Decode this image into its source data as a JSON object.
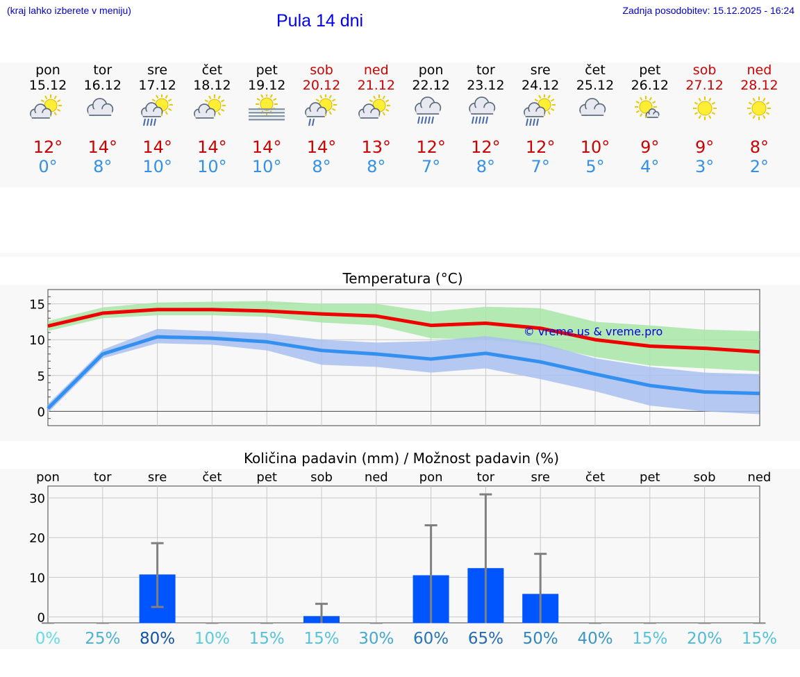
{
  "header": {
    "hint": "(kraj lahko izberete v meniju)",
    "title": "Pula 14 dni",
    "updated": "Zadnja posodobitev: 15.12.2025 - 16:24"
  },
  "days": [
    {
      "name": "pon",
      "date": "15.12",
      "weekend": false,
      "icon": "sun-cloud-icon",
      "max": "12°",
      "min": "0°"
    },
    {
      "name": "tor",
      "date": "16.12",
      "weekend": false,
      "icon": "cloud-icon",
      "max": "14°",
      "min": "8°"
    },
    {
      "name": "sre",
      "date": "17.12",
      "weekend": false,
      "icon": "sun-cloud-rain-icon",
      "max": "14°",
      "min": "10°"
    },
    {
      "name": "čet",
      "date": "18.12",
      "weekend": false,
      "icon": "sun-cloud-icon",
      "max": "14°",
      "min": "10°"
    },
    {
      "name": "pet",
      "date": "19.12",
      "weekend": false,
      "icon": "sun-fog-icon",
      "max": "14°",
      "min": "10°"
    },
    {
      "name": "sob",
      "date": "20.12",
      "weekend": true,
      "icon": "sun-cloud-light-rain-icon",
      "max": "14°",
      "min": "8°"
    },
    {
      "name": "ned",
      "date": "21.12",
      "weekend": true,
      "icon": "sun-cloud-icon",
      "max": "13°",
      "min": "8°"
    },
    {
      "name": "pon",
      "date": "22.12",
      "weekend": false,
      "icon": "cloud-rain-icon",
      "max": "12°",
      "min": "7°"
    },
    {
      "name": "tor",
      "date": "23.12",
      "weekend": false,
      "icon": "cloud-rain-icon",
      "max": "12°",
      "min": "8°"
    },
    {
      "name": "sre",
      "date": "24.12",
      "weekend": false,
      "icon": "sun-cloud-rain-icon",
      "max": "12°",
      "min": "7°"
    },
    {
      "name": "čet",
      "date": "25.12",
      "weekend": false,
      "icon": "cloud-icon",
      "max": "10°",
      "min": "5°"
    },
    {
      "name": "pet",
      "date": "26.12",
      "weekend": false,
      "icon": "sun-small-cloud-icon",
      "max": "9°",
      "min": "4°"
    },
    {
      "name": "sob",
      "date": "27.12",
      "weekend": true,
      "icon": "sun-icon",
      "max": "9°",
      "min": "3°"
    },
    {
      "name": "ned",
      "date": "28.12",
      "weekend": true,
      "icon": "sun-icon",
      "max": "8°",
      "min": "2°"
    }
  ],
  "colors": {
    "max_line": "#ee0000",
    "min_line": "#3390f0",
    "max_band": "#a8e6a8",
    "min_band": "#a8c0f0",
    "precip_bar": "#0055ff",
    "error_bar": "#808080"
  },
  "chart_data": [
    {
      "type": "line",
      "title": "Temperatura (°C)",
      "watermark": "© vreme.us & vreme.pro",
      "ylim": [
        -2,
        17
      ],
      "yticks": [
        "0",
        "5",
        "10",
        "15"
      ],
      "grid": true,
      "series": [
        {
          "name": "max",
          "values": [
            11.9,
            13.7,
            14.2,
            14.2,
            14.0,
            13.6,
            13.3,
            12.0,
            12.3,
            11.6,
            10.0,
            9.1,
            8.8,
            8.3
          ],
          "band_low": [
            11.2,
            13.0,
            13.4,
            13.4,
            13.2,
            12.4,
            12.0,
            10.2,
            10.0,
            9.2,
            7.6,
            6.4,
            6.0,
            5.6
          ],
          "band_high": [
            12.6,
            14.5,
            15.2,
            15.3,
            15.4,
            15.0,
            15.0,
            13.9,
            14.6,
            14.4,
            12.5,
            12.0,
            11.4,
            11.2
          ]
        },
        {
          "name": "min",
          "values": [
            0.4,
            8.0,
            10.4,
            10.2,
            9.7,
            8.5,
            8.0,
            7.3,
            8.1,
            6.9,
            5.2,
            3.6,
            2.7,
            2.5
          ],
          "band_low": [
            -0.2,
            7.4,
            9.5,
            9.3,
            8.5,
            6.5,
            6.2,
            5.4,
            6.0,
            4.5,
            2.8,
            0.8,
            0.0,
            -0.4
          ],
          "band_high": [
            1.0,
            8.6,
            11.5,
            11.2,
            10.9,
            10.0,
            9.6,
            9.8,
            10.5,
            9.5,
            7.4,
            6.2,
            5.4,
            5.2
          ]
        }
      ]
    },
    {
      "type": "bar",
      "title": "Količina padavin (mm) / Možnost padavin (%)",
      "categories": [
        "pon",
        "tor",
        "sre",
        "čet",
        "pet",
        "sob",
        "ned",
        "pon",
        "tor",
        "sre",
        "čet",
        "pet",
        "sob",
        "ned"
      ],
      "values": [
        0,
        0,
        10.7,
        0,
        0,
        0.2,
        0,
        10.5,
        12.3,
        5.8,
        0,
        0,
        0,
        0
      ],
      "error_low": [
        0,
        0,
        2.5,
        0,
        0,
        0,
        0,
        0,
        0,
        0,
        0,
        0,
        0,
        0
      ],
      "error_high": [
        0,
        0,
        18.6,
        0,
        0,
        3.3,
        0,
        23.1,
        30.9,
        15.9,
        0,
        0,
        0,
        0
      ],
      "probability": [
        "0%",
        "25%",
        "80%",
        "10%",
        "15%",
        "15%",
        "30%",
        "60%",
        "65%",
        "50%",
        "40%",
        "15%",
        "20%",
        "15%"
      ],
      "probability_values": [
        0,
        25,
        80,
        10,
        15,
        15,
        30,
        60,
        65,
        50,
        40,
        15,
        20,
        15
      ],
      "ylim": [
        -1.5,
        33
      ],
      "yticks": [
        "0",
        "10",
        "20",
        "30"
      ],
      "grid": true
    }
  ]
}
